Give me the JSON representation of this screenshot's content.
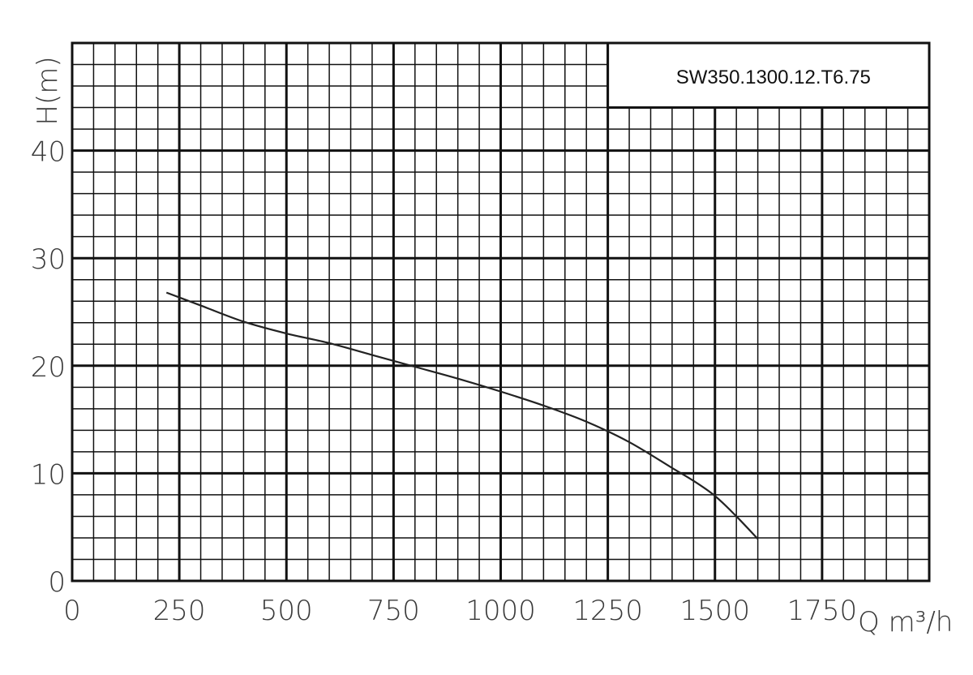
{
  "chart_data": {
    "type": "line",
    "title": "SW350.1300.12.T6.75",
    "xlabel": "Q m³/h",
    "ylabel": "H(m)",
    "xlim": [
      0,
      2000
    ],
    "ylim": [
      0,
      50
    ],
    "x_ticks": [
      "0",
      "250",
      "500",
      "750",
      "1000",
      "1250",
      "1500",
      "1750"
    ],
    "y_ticks": [
      "0",
      "10",
      "20",
      "30",
      "40"
    ],
    "grid": true,
    "series": [
      {
        "x": [
          220,
          300,
          400,
          500,
          600,
          700,
          800,
          900,
          1000,
          1100,
          1200,
          1300,
          1400,
          1450,
          1500,
          1550,
          1600
        ],
        "y": [
          26.8,
          25.6,
          24.1,
          23.0,
          22.1,
          21.0,
          19.9,
          18.8,
          17.6,
          16.3,
          14.8,
          12.9,
          10.5,
          9.3,
          7.9,
          6.0,
          3.9
        ]
      }
    ]
  }
}
